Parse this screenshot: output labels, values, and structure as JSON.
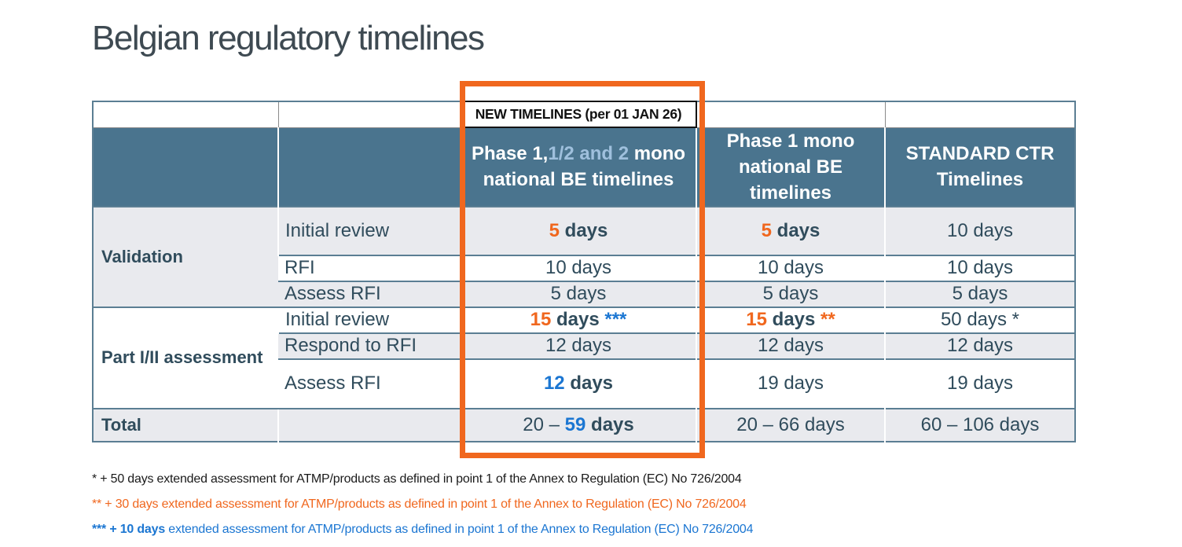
{
  "title": "Belgian regulatory timelines",
  "banner": "NEW TIMELINES (per 01 JAN 26)",
  "header": {
    "col3": [
      {
        "text": "Phase 1,"
      },
      {
        "text": "1/2 and 2",
        "style": "light-blue"
      },
      {
        "text": " mono national BE timelines"
      }
    ],
    "col4": [
      {
        "text": "Phase 1 mono national BE timelines"
      }
    ],
    "col5": [
      {
        "text": "STANDARD CTR Timelines"
      }
    ]
  },
  "groups": [
    {
      "name": "Validation",
      "shaded_group_cell": true,
      "rows": [
        {
          "label": "Initial review",
          "shade": true,
          "cells": [
            [
              {
                "text": "5",
                "style": "orange-bold"
              },
              {
                "text": " days",
                "style": "bold"
              }
            ],
            [
              {
                "text": "5",
                "style": "orange-bold"
              },
              {
                "text": " days",
                "style": "bold"
              }
            ],
            [
              {
                "text": "10 days"
              }
            ]
          ]
        },
        {
          "label": "RFI",
          "shade": false,
          "cells": [
            [
              {
                "text": "10 days"
              }
            ],
            [
              {
                "text": "10 days"
              }
            ],
            [
              {
                "text": "10 days"
              }
            ]
          ]
        },
        {
          "label": "Assess RFI",
          "shade": true,
          "cells": [
            [
              {
                "text": "5 days"
              }
            ],
            [
              {
                "text": "5 days"
              }
            ],
            [
              {
                "text": "5 days"
              }
            ]
          ]
        }
      ]
    },
    {
      "name": "Part I/II assessment",
      "shaded_group_cell": false,
      "rows": [
        {
          "label": "Initial review",
          "shade": false,
          "cells": [
            [
              {
                "text": "15",
                "style": "orange-bold"
              },
              {
                "text": " days ",
                "style": "bold"
              },
              {
                "text": "***",
                "style": "blue-bold"
              }
            ],
            [
              {
                "text": "15",
                "style": "orange-bold"
              },
              {
                "text": " days ",
                "style": "bold"
              },
              {
                "text": "**",
                "style": "orange-bold"
              }
            ],
            [
              {
                "text": "50 days *"
              }
            ]
          ]
        },
        {
          "label": "Respond to RFI",
          "shade": true,
          "cells": [
            [
              {
                "text": "12 days"
              }
            ],
            [
              {
                "text": "12 days"
              }
            ],
            [
              {
                "text": "12 days"
              }
            ]
          ]
        },
        {
          "label": "Assess RFI",
          "shade": false,
          "cells": [
            [
              {
                "text": "12",
                "style": "blue-bold"
              },
              {
                "text": " days",
                "style": "bold"
              }
            ],
            [
              {
                "text": "19 days"
              }
            ],
            [
              {
                "text": "19 days"
              }
            ]
          ]
        }
      ]
    }
  ],
  "total": {
    "label": "Total",
    "cells": [
      [
        {
          "text": "20 – "
        },
        {
          "text": "59",
          "style": "blue-bold"
        },
        {
          "text": " days",
          "style": "bold"
        }
      ],
      [
        {
          "text": "20 – 66 days"
        }
      ],
      [
        {
          "text": "60 – 106 days"
        }
      ]
    ]
  },
  "footnotes": [
    {
      "color": "dark",
      "segments": [
        {
          "text": "* + 50 days extended assessment for ATMP/products as defined in point 1 of the Annex to Regulation (EC) No 726/2004"
        }
      ]
    },
    {
      "color": "orange",
      "segments": [
        {
          "text": "** + 30 days extended assessment for ATMP/products as defined in point 1 of the Annex to Regulation (EC) No 726/2004"
        }
      ]
    },
    {
      "color": "blue",
      "segments": [
        {
          "text": "*** + 10 days",
          "style": "bold"
        },
        {
          "text": " extended assessment for ATMP/products as defined in point 1 of the Annex to Regulation (EC) No 726/2004"
        }
      ]
    }
  ],
  "colors": {
    "accent_orange": "#F0671E",
    "accent_blue": "#1B76D2",
    "header_teal": "#4A748E",
    "header_light_blue": "#9FC0DD",
    "row_shade": "#E9EAEE",
    "border_slate": "#5B7E93",
    "text_dark": "#304C5C"
  }
}
